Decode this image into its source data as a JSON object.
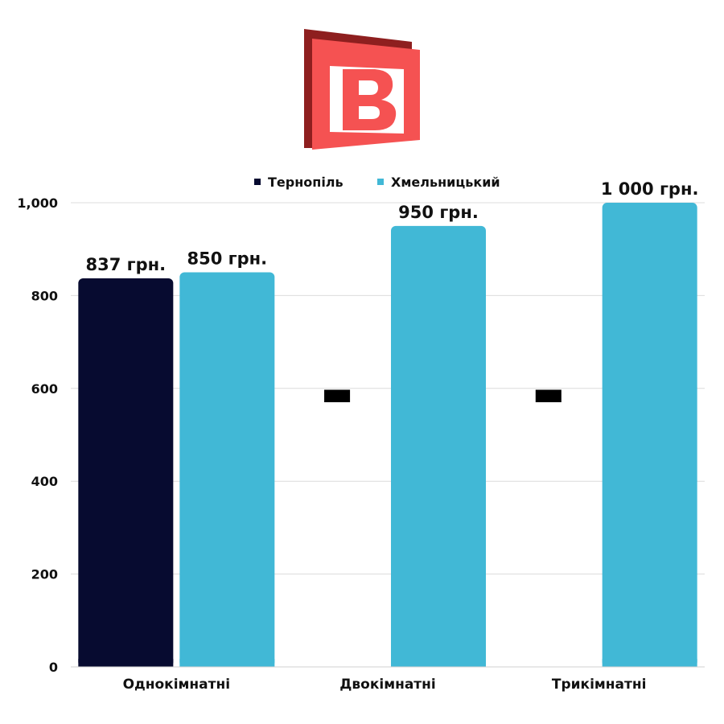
{
  "logo": {
    "letter": "B"
  },
  "chart_data": {
    "type": "bar",
    "categories": [
      "Однокімнатні",
      "Двокімнатні",
      "Трикімнатні"
    ],
    "series": [
      {
        "name": "Тернопіль",
        "color": "#070b30",
        "values": [
          837,
          null,
          null
        ],
        "data_labels": [
          "837 грн.",
          "",
          ""
        ]
      },
      {
        "name": "Хмельницький",
        "color": "#41b8d6",
        "values": [
          850,
          950,
          1000
        ],
        "data_labels": [
          "850 грн.",
          "950 грн.",
          "1 000 грн."
        ]
      }
    ],
    "missing_marker": "▬",
    "ylim": [
      0,
      1000
    ],
    "yticks": [
      0,
      200,
      400,
      600,
      800,
      1000
    ],
    "ytick_labels": [
      "0",
      "200",
      "400",
      "600",
      "800",
      "1,000"
    ],
    "grid": true,
    "legend_position": "top-center",
    "title": "",
    "xlabel": "",
    "ylabel": ""
  }
}
